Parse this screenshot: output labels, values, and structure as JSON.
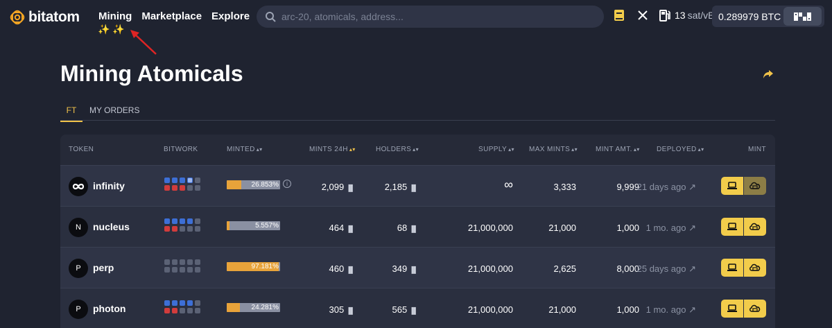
{
  "brand": {
    "name": "bitatom",
    "accent": "#f5a623"
  },
  "nav": {
    "mining": "Mining",
    "marketplace": "Marketplace",
    "explore": "Explore",
    "sparkles": "✨ ✨"
  },
  "search": {
    "placeholder": "arc-20, atomicals, address..."
  },
  "gas": {
    "value": "13",
    "unit": "sat/vB"
  },
  "wallet": {
    "balance": "0.289979 BTC"
  },
  "page": {
    "title": "Mining Atomicals"
  },
  "tabs": [
    {
      "label": "FT"
    },
    {
      "label": "MY ORDERS"
    }
  ],
  "table": {
    "headers": {
      "token": "TOKEN",
      "bitwork": "BITWORK",
      "minted": "MINTED",
      "mints24h": "MINTS 24H",
      "holders": "HOLDERS",
      "supply": "SUPPLY",
      "max_mints": "MAX MINTS",
      "mint_amt": "MINT AMT.",
      "deployed": "DEPLOYED",
      "mint": "MINT"
    },
    "rows": [
      {
        "avatar": "∞",
        "name": "infinity",
        "minted_pct": "26.853%",
        "minted_frac": 0.26853,
        "mints24h": "2,099",
        "holders": "2,185",
        "supply": "∞",
        "max_mints": "3,333",
        "mint_amt": "9,999",
        "deployed": "21 days ago"
      },
      {
        "avatar": "N",
        "name": "nucleus",
        "minted_pct": "5.557%",
        "minted_frac": 0.05557,
        "mints24h": "464",
        "holders": "68",
        "supply": "21,000,000",
        "max_mints": "21,000",
        "mint_amt": "1,000",
        "deployed": "1 mo. ago"
      },
      {
        "avatar": "P",
        "name": "perp",
        "minted_pct": "97.181%",
        "minted_frac": 0.97181,
        "mints24h": "460",
        "holders": "349",
        "supply": "21,000,000",
        "max_mints": "2,625",
        "mint_amt": "8,000",
        "deployed": "25 days ago"
      },
      {
        "avatar": "P",
        "name": "photon",
        "minted_pct": "24.281%",
        "minted_frac": 0.24281,
        "mints24h": "305",
        "holders": "565",
        "supply": "21,000,000",
        "max_mints": "21,000",
        "mint_amt": "1,000",
        "deployed": "1 mo. ago"
      }
    ]
  }
}
